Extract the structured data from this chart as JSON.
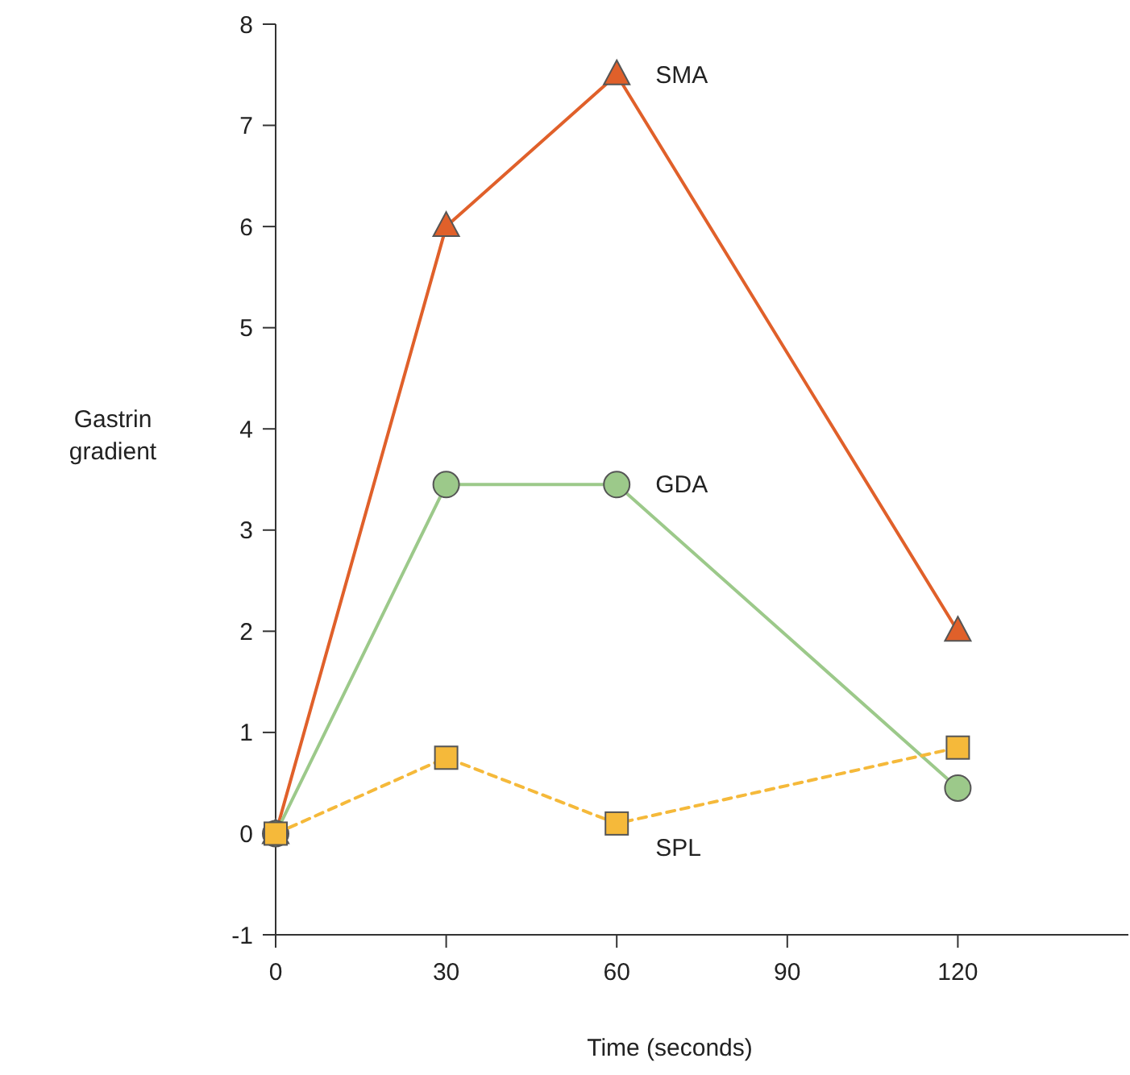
{
  "chart_data": {
    "type": "line",
    "xlabel": "Time (seconds)",
    "ylabel": "Gastrin gradient",
    "x": [
      0,
      30,
      60,
      120
    ],
    "xlim": [
      0,
      150
    ],
    "xticks": [
      0,
      30,
      60,
      90,
      120
    ],
    "ylim": [
      -1,
      8
    ],
    "yticks": [
      -1,
      0,
      1,
      2,
      3,
      4,
      5,
      6,
      7,
      8
    ],
    "grid": false,
    "series": [
      {
        "name": "SMA",
        "color": "#e0602a",
        "marker": "triangle",
        "line_style": "solid",
        "values": [
          0,
          6,
          7.5,
          2
        ]
      },
      {
        "name": "GDA",
        "color": "#9cc98a",
        "marker": "circle",
        "line_style": "solid",
        "values": [
          0,
          3.45,
          3.45,
          0.45
        ]
      },
      {
        "name": "SPL",
        "color": "#f5b93a",
        "marker": "square",
        "line_style": "dashed",
        "values": [
          0,
          0.75,
          0.1,
          0.85
        ]
      }
    ]
  }
}
